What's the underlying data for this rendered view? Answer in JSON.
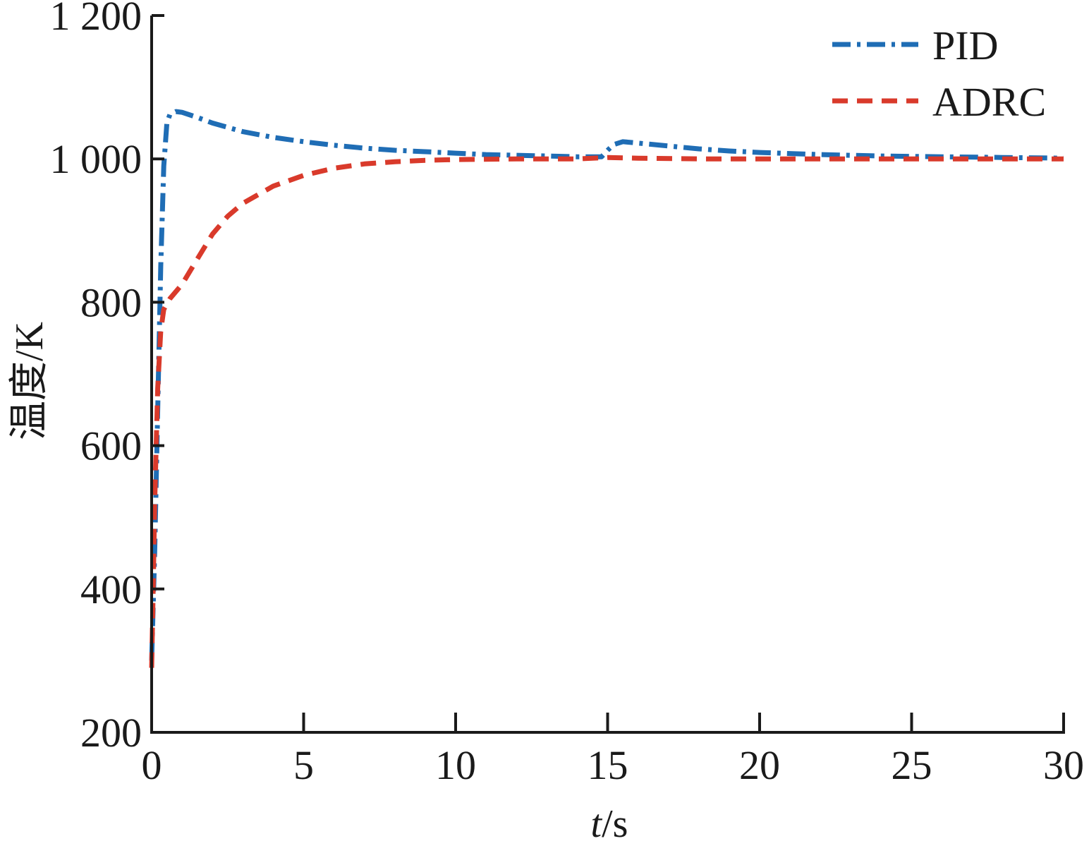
{
  "chart_data": {
    "type": "line",
    "title": "",
    "xlabel": "t/s",
    "ylabel": "温度/K",
    "xlim": [
      0,
      30
    ],
    "ylim": [
      200,
      1200
    ],
    "xticks": [
      0,
      5,
      10,
      15,
      20,
      25,
      30
    ],
    "xtick_labels": [
      "0",
      "5",
      "10",
      "15",
      "20",
      "25",
      "30"
    ],
    "yticks": [
      200,
      400,
      600,
      800,
      1000,
      1200
    ],
    "ytick_labels": [
      "200",
      "400",
      "600",
      "800",
      "1 000",
      "1 200"
    ],
    "grid": false,
    "legend_position": "top-right",
    "series": [
      {
        "name": "PID",
        "color": "#1f6db5",
        "style": "dash-dot",
        "x": [
          0,
          0.1,
          0.2,
          0.3,
          0.4,
          0.5,
          0.6,
          0.8,
          1.0,
          1.5,
          2,
          3,
          4,
          5,
          6,
          7,
          8,
          9,
          10,
          11,
          12,
          13,
          14,
          14.8,
          15.0,
          15.2,
          15.5,
          16,
          17,
          18,
          19,
          20,
          22,
          24,
          26,
          28,
          30
        ],
        "y": [
          300,
          450,
          650,
          850,
          990,
          1050,
          1062,
          1066,
          1065,
          1058,
          1050,
          1038,
          1030,
          1024,
          1019,
          1015,
          1012,
          1010,
          1008,
          1006,
          1005,
          1004,
          1003,
          1003,
          1012,
          1020,
          1024,
          1022,
          1018,
          1014,
          1011,
          1009,
          1006,
          1004,
          1003,
          1002,
          1001
        ]
      },
      {
        "name": "ADRC",
        "color": "#d93a2b",
        "style": "dashed",
        "x": [
          0,
          0.05,
          0.1,
          0.2,
          0.3,
          0.4,
          0.6,
          1,
          1.5,
          2,
          2.5,
          3,
          4,
          5,
          6,
          7,
          8,
          9,
          10,
          12,
          14,
          15,
          16,
          18,
          20,
          22,
          25,
          28,
          30
        ],
        "y": [
          290,
          400,
          520,
          680,
          760,
          790,
          805,
          825,
          860,
          895,
          920,
          938,
          962,
          977,
          987,
          993,
          996,
          998,
          999,
          1000,
          1000,
          1002,
          1001,
          1000,
          1000,
          1000,
          1000,
          1000,
          1000
        ]
      }
    ]
  }
}
